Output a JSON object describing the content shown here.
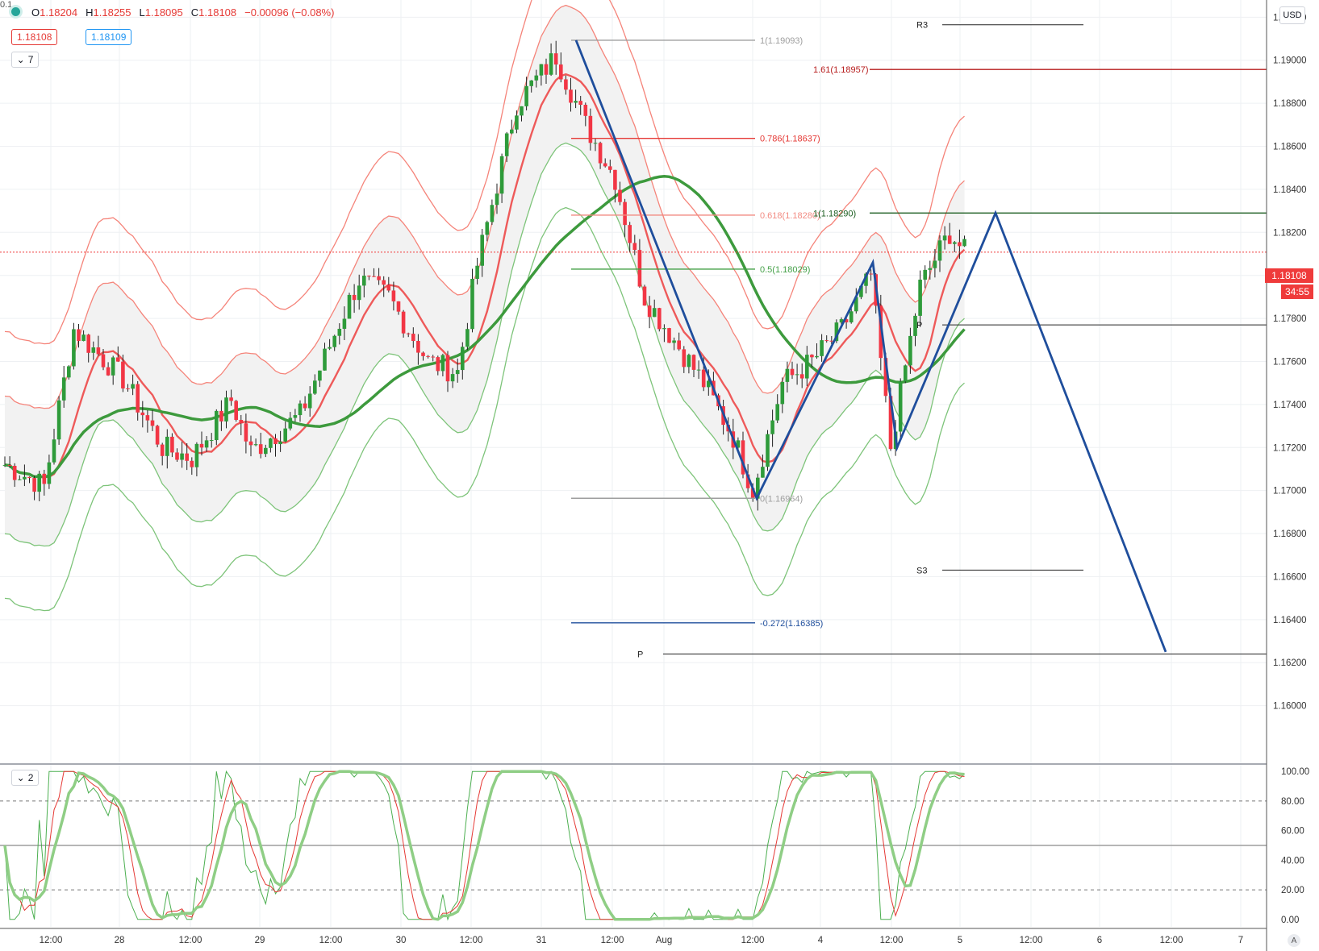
{
  "header": {
    "open_label": "O",
    "open": "1.18204",
    "high_label": "H",
    "high": "1.18255",
    "low_label": "L",
    "low": "1.18095",
    "close_label": "C",
    "close": "1.18108",
    "change": "−0.00096 (−0.08%)",
    "bid": "1.18108",
    "spread": "0.1",
    "ask": "1.18109",
    "indicators_count": "7",
    "oscillator_count": "2"
  },
  "axis": {
    "currency": "USD",
    "last_price": "1.18108",
    "countdown": "34:55",
    "auto_label": "A"
  },
  "colors": {
    "bull": "#2e9b3a",
    "bear": "#f23645",
    "pattern": "#1f4e9c",
    "upper_bands": "#f5847a",
    "lower_bands": "#7ec47a",
    "ma_fast_red": "#ee5a5a",
    "ma_slow_green": "#3d9a3d"
  },
  "chart_data": {
    "type": "candlestick",
    "symbol_quote": "USD",
    "y_ticks": [
      "1.16000",
      "1.16200",
      "1.16400",
      "1.16600",
      "1.16800",
      "1.17000",
      "1.17200",
      "1.17400",
      "1.17600",
      "1.17800",
      "1.18000",
      "1.18200",
      "1.18400",
      "1.18600",
      "1.18800",
      "1.19000",
      "1.19200"
    ],
    "ylim": [
      1.1574,
      1.1928
    ],
    "x_ticks": [
      "12:00",
      "28",
      "12:00",
      "29",
      "12:00",
      "30",
      "12:00",
      "31",
      "12:00",
      "Aug",
      "12:00",
      "4",
      "12:00",
      "5",
      "12:00",
      "6",
      "12:00",
      "7"
    ],
    "fib_levels": [
      {
        "label": "1(1.19093)",
        "value": 1.19093
      },
      {
        "label": "1.61(1.18957)",
        "value": 1.18957
      },
      {
        "label": "0.786(1.18637)",
        "value": 1.18637
      },
      {
        "label": "0.618(1.18280)",
        "value": 1.1828
      },
      {
        "label": "1(1.18290)",
        "value": 1.1829
      },
      {
        "label": "0.5(1.18029)",
        "value": 1.18029
      },
      {
        "label": "0(1.16964)",
        "value": 1.16964
      },
      {
        "label": "-0.272(1.16385)",
        "value": 1.16385
      }
    ],
    "pivots": [
      {
        "label": "R3",
        "value": 1.19165
      },
      {
        "label": "P",
        "value": 1.1777
      },
      {
        "label": "S3",
        "value": 1.1663
      },
      {
        "label": "P",
        "value": 1.1624
      }
    ],
    "pattern_points": [
      {
        "x": "Jul 31 06:00",
        "y": 1.19093
      },
      {
        "x": "Aug 3 12:00",
        "y": 1.16964
      },
      {
        "x": "Aug 4 09:00",
        "y": 1.1806
      },
      {
        "x": "Aug 4 12:00",
        "y": 1.172
      },
      {
        "x": "Aug 5 08:00",
        "y": 1.1829
      },
      {
        "x": "Aug 6 12:00",
        "y": 1.1625
      }
    ],
    "oscillator": {
      "y_ticks": [
        "100.00",
        "80.00",
        "60.00",
        "40.00",
        "20.00",
        "0.00"
      ],
      "ylim": [
        -5,
        105
      ],
      "levels": [
        80,
        50,
        20
      ]
    }
  }
}
